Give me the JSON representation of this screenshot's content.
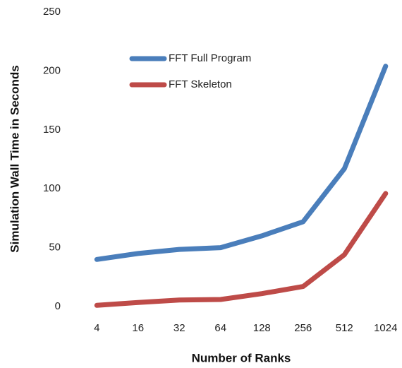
{
  "chart_data": {
    "type": "line",
    "x_label": "Number of Ranks",
    "y_label": "Simulation Wall Time in Seconds",
    "categories": [
      "4",
      "16",
      "32",
      "64",
      "128",
      "256",
      "512",
      "1024"
    ],
    "series": [
      {
        "name": "FFT Full Program",
        "color": "#4a7ebb",
        "values": [
          40,
          45,
          48.5,
          50,
          60,
          72,
          117,
          204
        ]
      },
      {
        "name": "FFT Skeleton",
        "color": "#be4b48",
        "values": [
          1,
          3.5,
          5.5,
          6,
          11,
          17,
          44,
          96
        ]
      }
    ],
    "ylim": [
      0,
      250
    ],
    "yticks": [
      0,
      50,
      100,
      150,
      200,
      250
    ],
    "grid": false
  }
}
